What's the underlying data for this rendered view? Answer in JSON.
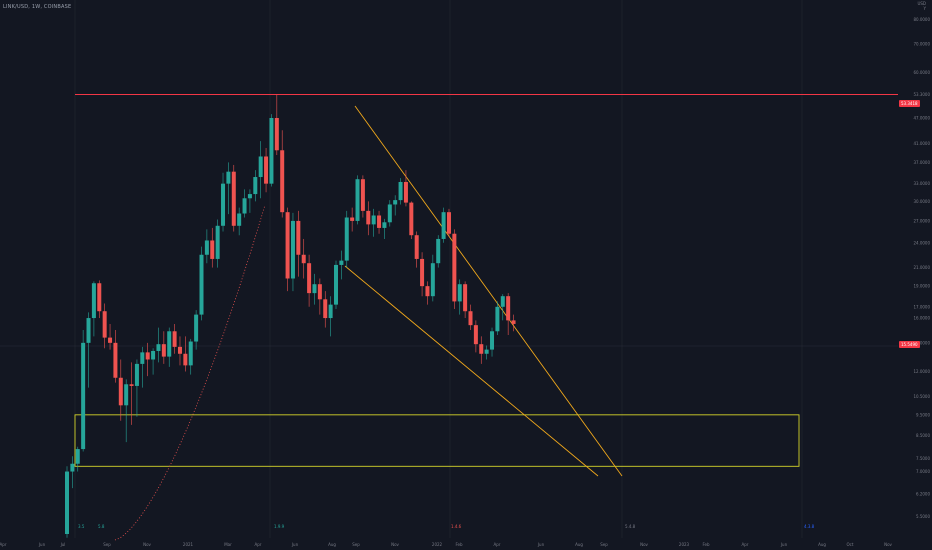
{
  "title": "LINK/USD, 1W, COINBASE",
  "corner": [
    "USD",
    "Y"
  ],
  "y_axis_labels": [
    "80.0000",
    "70.0000",
    "60.0000",
    "53.3000",
    "47.0000",
    "41.0000",
    "37.0000",
    "33.0000",
    "30.0000",
    "27.0000",
    "24.0000",
    "21.0000",
    "19.0000",
    "17.0000",
    "16.0000",
    "14.0000",
    "12.0000",
    "10.5000",
    "9.5000",
    "8.5000",
    "7.5000",
    "7.0000",
    "6.2000",
    "5.5000"
  ],
  "price_tags": {
    "resistance": "53.3418",
    "current": "15.5490",
    "current_sub": "1d 8h"
  },
  "x_axis_labels": [
    "Apr",
    "Jun",
    "Jul",
    "Sep",
    "Nov",
    "2021",
    "Mar",
    "Apr",
    "Jun",
    "Aug",
    "Sep",
    "Nov",
    "2022",
    "Feb",
    "Apr",
    "Jun",
    "Aug",
    "Sep",
    "Nov",
    "2023",
    "Feb",
    "Apr",
    "Jun",
    "Aug",
    "Oct",
    "Nov"
  ],
  "markers": [
    "3.5",
    "5.8",
    "1.9.9",
    "1.4.6",
    "5.4.8",
    "4.3.8"
  ],
  "colors": {
    "up": "#26a69a",
    "down": "#ef5350",
    "resistance": "#f23645",
    "trend": "#f0a81c",
    "zone": "#d4d42a"
  },
  "chart_data": {
    "type": "candlestick",
    "title": "LINK/USD, 1W, COINBASE",
    "xlabel": "",
    "ylabel": "",
    "ylim": [
      5.5,
      80
    ],
    "y_scale": "log",
    "candles": [
      {
        "o": 5.0,
        "h": 7.2,
        "l": 4.9,
        "c": 7.0
      },
      {
        "o": 7.0,
        "h": 7.6,
        "l": 6.4,
        "c": 7.3
      },
      {
        "o": 7.3,
        "h": 8.0,
        "l": 7.0,
        "c": 7.9
      },
      {
        "o": 7.9,
        "h": 15.0,
        "l": 7.8,
        "c": 14.0
      },
      {
        "o": 14.0,
        "h": 16.5,
        "l": 11.0,
        "c": 16.0
      },
      {
        "o": 16.0,
        "h": 19.5,
        "l": 14.5,
        "c": 19.3
      },
      {
        "o": 19.3,
        "h": 19.6,
        "l": 16.0,
        "c": 16.6
      },
      {
        "o": 16.6,
        "h": 17.3,
        "l": 13.6,
        "c": 14.4
      },
      {
        "o": 14.4,
        "h": 15.5,
        "l": 13.5,
        "c": 14.0
      },
      {
        "o": 14.0,
        "h": 15.0,
        "l": 11.3,
        "c": 11.6
      },
      {
        "o": 11.6,
        "h": 12.8,
        "l": 9.2,
        "c": 10.0
      },
      {
        "o": 10.0,
        "h": 11.5,
        "l": 8.2,
        "c": 11.2
      },
      {
        "o": 11.2,
        "h": 12.6,
        "l": 9.0,
        "c": 11.1
      },
      {
        "o": 11.1,
        "h": 12.8,
        "l": 9.4,
        "c": 12.5
      },
      {
        "o": 12.5,
        "h": 13.7,
        "l": 11.0,
        "c": 13.3
      },
      {
        "o": 13.3,
        "h": 14.0,
        "l": 11.7,
        "c": 12.8
      },
      {
        "o": 12.8,
        "h": 13.6,
        "l": 11.8,
        "c": 13.4
      },
      {
        "o": 13.4,
        "h": 15.2,
        "l": 12.6,
        "c": 13.9
      },
      {
        "o": 13.9,
        "h": 14.9,
        "l": 12.5,
        "c": 13.0
      },
      {
        "o": 13.0,
        "h": 15.2,
        "l": 12.3,
        "c": 14.9
      },
      {
        "o": 14.9,
        "h": 15.5,
        "l": 13.2,
        "c": 13.7
      },
      {
        "o": 13.7,
        "h": 14.5,
        "l": 12.4,
        "c": 13.2
      },
      {
        "o": 13.2,
        "h": 14.5,
        "l": 12.0,
        "c": 12.4
      },
      {
        "o": 12.4,
        "h": 14.3,
        "l": 11.8,
        "c": 14.1
      },
      {
        "o": 14.1,
        "h": 16.7,
        "l": 13.5,
        "c": 16.3
      },
      {
        "o": 16.3,
        "h": 23.5,
        "l": 15.8,
        "c": 22.5
      },
      {
        "o": 22.5,
        "h": 25.8,
        "l": 21.5,
        "c": 24.3
      },
      {
        "o": 24.3,
        "h": 26.0,
        "l": 21.0,
        "c": 22.0
      },
      {
        "o": 22.0,
        "h": 27.2,
        "l": 21.0,
        "c": 26.3
      },
      {
        "o": 26.3,
        "h": 35.0,
        "l": 25.5,
        "c": 33.0
      },
      {
        "o": 33.0,
        "h": 37.0,
        "l": 28.0,
        "c": 35.2
      },
      {
        "o": 35.2,
        "h": 36.5,
        "l": 25.5,
        "c": 26.3
      },
      {
        "o": 26.3,
        "h": 29.0,
        "l": 25.0,
        "c": 28.1
      },
      {
        "o": 28.1,
        "h": 32.0,
        "l": 27.5,
        "c": 30.5
      },
      {
        "o": 30.5,
        "h": 32.0,
        "l": 28.2,
        "c": 31.2
      },
      {
        "o": 31.2,
        "h": 35.5,
        "l": 30.0,
        "c": 34.2
      },
      {
        "o": 34.2,
        "h": 41.5,
        "l": 30.5,
        "c": 38.2
      },
      {
        "o": 38.2,
        "h": 40.0,
        "l": 31.5,
        "c": 33.0
      },
      {
        "o": 33.0,
        "h": 48.0,
        "l": 32.5,
        "c": 47.0
      },
      {
        "o": 47.0,
        "h": 53.3,
        "l": 38.5,
        "c": 39.5
      },
      {
        "o": 39.5,
        "h": 44.0,
        "l": 27.5,
        "c": 28.3
      },
      {
        "o": 28.3,
        "h": 29.0,
        "l": 18.5,
        "c": 19.8
      },
      {
        "o": 19.8,
        "h": 28.2,
        "l": 18.5,
        "c": 27.0
      },
      {
        "o": 27.0,
        "h": 28.5,
        "l": 20.0,
        "c": 22.5
      },
      {
        "o": 22.5,
        "h": 24.5,
        "l": 19.8,
        "c": 21.5
      },
      {
        "o": 21.5,
        "h": 22.5,
        "l": 17.0,
        "c": 18.3
      },
      {
        "o": 18.3,
        "h": 20.3,
        "l": 17.2,
        "c": 19.2
      },
      {
        "o": 19.2,
        "h": 19.8,
        "l": 16.3,
        "c": 17.7
      },
      {
        "o": 17.7,
        "h": 18.5,
        "l": 15.2,
        "c": 16.0
      },
      {
        "o": 16.0,
        "h": 18.0,
        "l": 14.5,
        "c": 17.2
      },
      {
        "o": 17.2,
        "h": 21.8,
        "l": 16.8,
        "c": 21.3
      },
      {
        "o": 21.3,
        "h": 23.0,
        "l": 19.7,
        "c": 21.8
      },
      {
        "o": 21.8,
        "h": 28.5,
        "l": 21.0,
        "c": 27.5
      },
      {
        "o": 27.5,
        "h": 29.0,
        "l": 25.5,
        "c": 27.0
      },
      {
        "o": 27.0,
        "h": 34.5,
        "l": 26.5,
        "c": 33.8
      },
      {
        "o": 33.8,
        "h": 34.5,
        "l": 27.5,
        "c": 28.5
      },
      {
        "o": 28.5,
        "h": 30.0,
        "l": 25.0,
        "c": 26.5
      },
      {
        "o": 26.5,
        "h": 28.8,
        "l": 24.8,
        "c": 27.8
      },
      {
        "o": 27.8,
        "h": 28.5,
        "l": 25.2,
        "c": 26.0
      },
      {
        "o": 26.0,
        "h": 27.3,
        "l": 24.5,
        "c": 26.8
      },
      {
        "o": 26.8,
        "h": 30.2,
        "l": 26.2,
        "c": 29.5
      },
      {
        "o": 29.5,
        "h": 31.0,
        "l": 27.8,
        "c": 30.2
      },
      {
        "o": 30.2,
        "h": 34.0,
        "l": 29.5,
        "c": 33.3
      },
      {
        "o": 33.3,
        "h": 35.5,
        "l": 29.2,
        "c": 29.8
      },
      {
        "o": 29.8,
        "h": 30.0,
        "l": 24.5,
        "c": 25.0
      },
      {
        "o": 25.0,
        "h": 25.5,
        "l": 21.0,
        "c": 22.0
      },
      {
        "o": 22.0,
        "h": 22.8,
        "l": 18.0,
        "c": 19.0
      },
      {
        "o": 19.0,
        "h": 19.5,
        "l": 17.2,
        "c": 18.0
      },
      {
        "o": 18.0,
        "h": 22.5,
        "l": 17.5,
        "c": 21.5
      },
      {
        "o": 21.5,
        "h": 25.0,
        "l": 21.0,
        "c": 24.5
      },
      {
        "o": 24.5,
        "h": 29.0,
        "l": 24.0,
        "c": 28.3
      },
      {
        "o": 28.3,
        "h": 28.8,
        "l": 24.8,
        "c": 25.2
      },
      {
        "o": 25.2,
        "h": 25.8,
        "l": 16.8,
        "c": 17.5
      },
      {
        "o": 17.5,
        "h": 19.7,
        "l": 16.3,
        "c": 19.2
      },
      {
        "o": 19.2,
        "h": 19.5,
        "l": 16.0,
        "c": 16.6
      },
      {
        "o": 16.6,
        "h": 17.2,
        "l": 15.0,
        "c": 15.4
      },
      {
        "o": 15.4,
        "h": 15.8,
        "l": 13.3,
        "c": 13.9
      },
      {
        "o": 13.9,
        "h": 14.5,
        "l": 12.5,
        "c": 13.2
      },
      {
        "o": 13.2,
        "h": 13.8,
        "l": 12.8,
        "c": 13.5
      },
      {
        "o": 13.5,
        "h": 15.2,
        "l": 13.0,
        "c": 14.9
      },
      {
        "o": 14.9,
        "h": 17.5,
        "l": 14.6,
        "c": 17.0
      },
      {
        "o": 17.0,
        "h": 18.2,
        "l": 15.8,
        "c": 18.0
      },
      {
        "o": 18.0,
        "h": 18.3,
        "l": 14.6,
        "c": 15.8
      },
      {
        "o": 15.8,
        "h": 16.3,
        "l": 14.9,
        "c": 15.5
      }
    ],
    "horizontal_line": 53.3418,
    "zone": {
      "top": 9.5,
      "bottom": 7.2
    }
  }
}
